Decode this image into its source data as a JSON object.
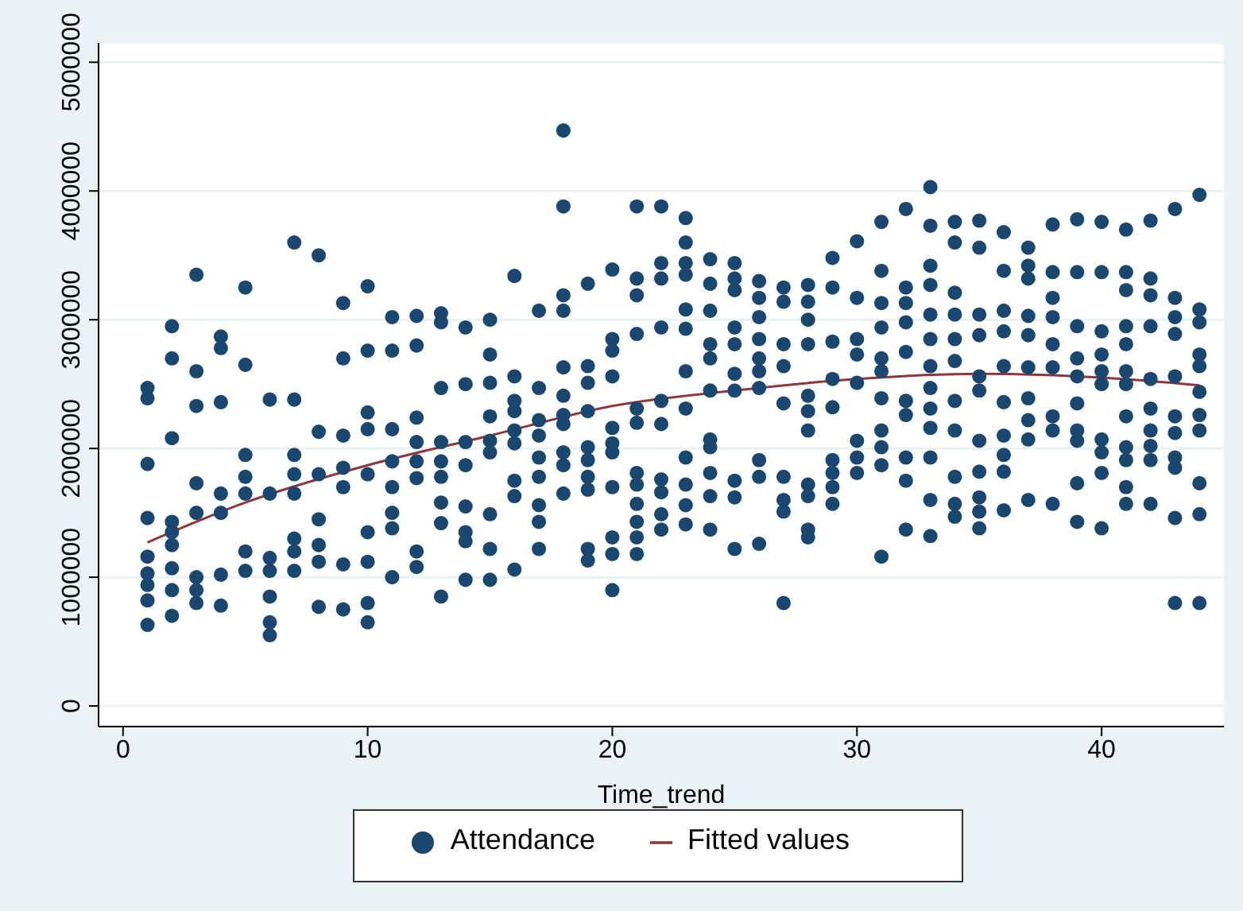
{
  "chart_data": {
    "type": "scatter",
    "xlabel": "Time_trend",
    "xlim": [
      -1,
      45
    ],
    "xticks": [
      0,
      10,
      20,
      30,
      40
    ],
    "ylim": [
      -160000,
      5150000
    ],
    "yticks": [
      0,
      1000000,
      2000000,
      3000000,
      4000000,
      5000000
    ],
    "grid": "y",
    "legend": "bottom",
    "series": [
      {
        "name": "Attendance",
        "marker": "circle",
        "color": "#1a476f",
        "x": [
          1,
          1,
          1,
          1,
          1,
          1,
          1,
          1,
          1,
          2,
          2,
          2,
          2,
          2,
          2,
          2,
          2,
          2,
          3,
          3,
          3,
          3,
          3,
          3,
          3,
          3,
          4,
          4,
          4,
          4,
          4,
          4,
          4,
          5,
          5,
          5,
          5,
          5,
          5,
          5,
          6,
          6,
          6,
          6,
          6,
          6,
          6,
          7,
          7,
          7,
          7,
          7,
          7,
          7,
          7,
          8,
          8,
          8,
          8,
          8,
          8,
          8,
          9,
          9,
          9,
          9,
          9,
          9,
          9,
          10,
          10,
          10,
          10,
          10,
          10,
          10,
          10,
          10,
          11,
          11,
          11,
          11,
          11,
          11,
          11,
          11,
          12,
          12,
          12,
          12,
          12,
          12,
          12,
          12,
          13,
          13,
          13,
          13,
          13,
          13,
          13,
          13,
          13,
          14,
          14,
          14,
          14,
          14,
          14,
          14,
          14,
          15,
          15,
          15,
          15,
          15,
          15,
          15,
          15,
          15,
          16,
          16,
          16,
          16,
          16,
          16,
          16,
          16,
          16,
          17,
          17,
          17,
          17,
          17,
          17,
          17,
          17,
          17,
          18,
          18,
          18,
          18,
          18,
          18,
          18,
          18,
          18,
          18,
          18,
          19,
          19,
          19,
          19,
          19,
          19,
          19,
          19,
          19,
          19,
          20,
          20,
          20,
          20,
          20,
          20,
          20,
          20,
          20,
          20,
          20,
          21,
          21,
          21,
          21,
          21,
          21,
          21,
          21,
          21,
          21,
          21,
          21,
          22,
          22,
          22,
          22,
          22,
          22,
          22,
          22,
          22,
          22,
          23,
          23,
          23,
          23,
          23,
          23,
          23,
          23,
          23,
          23,
          23,
          23,
          24,
          24,
          24,
          24,
          24,
          24,
          24,
          24,
          24,
          24,
          24,
          25,
          25,
          25,
          25,
          25,
          25,
          25,
          25,
          25,
          25,
          26,
          26,
          26,
          26,
          26,
          26,
          26,
          26,
          26,
          26,
          27,
          27,
          27,
          27,
          27,
          27,
          27,
          27,
          27,
          28,
          28,
          28,
          28,
          28,
          28,
          28,
          28,
          28,
          28,
          28,
          29,
          29,
          29,
          29,
          29,
          29,
          29,
          29,
          29,
          30,
          30,
          30,
          30,
          30,
          30,
          30,
          30,
          31,
          31,
          31,
          31,
          31,
          31,
          31,
          31,
          31,
          31,
          31,
          32,
          32,
          32,
          32,
          32,
          32,
          32,
          32,
          32,
          32,
          33,
          33,
          33,
          33,
          33,
          33,
          33,
          33,
          33,
          33,
          33,
          33,
          33,
          34,
          34,
          34,
          34,
          34,
          34,
          34,
          34,
          34,
          34,
          34,
          35,
          35,
          35,
          35,
          35,
          35,
          35,
          35,
          35,
          35,
          35,
          36,
          36,
          36,
          36,
          36,
          36,
          36,
          36,
          36,
          36,
          37,
          37,
          37,
          37,
          37,
          37,
          37,
          37,
          37,
          37,
          38,
          38,
          38,
          38,
          38,
          38,
          38,
          38,
          38,
          39,
          39,
          39,
          39,
          39,
          39,
          39,
          39,
          39,
          39,
          40,
          40,
          40,
          40,
          40,
          40,
          40,
          40,
          40,
          40,
          41,
          41,
          41,
          41,
          41,
          41,
          41,
          41,
          41,
          41,
          41,
          41,
          42,
          42,
          42,
          42,
          42,
          42,
          42,
          42,
          42,
          42,
          43,
          43,
          43,
          43,
          43,
          43,
          43,
          43,
          43,
          43,
          43,
          44,
          44,
          44,
          44,
          44,
          44,
          44,
          44,
          44,
          44,
          44
        ],
        "values": [
          2470000,
          2390000,
          1880000,
          1460000,
          1160000,
          1030000,
          940000,
          820000,
          630000,
          2950000,
          2700000,
          2080000,
          1430000,
          1350000,
          1250000,
          1070000,
          900000,
          700000,
          3350000,
          2600000,
          2330000,
          1730000,
          1500000,
          1000000,
          900000,
          800000,
          2870000,
          2780000,
          2360000,
          1650000,
          1500000,
          1020000,
          780000,
          3250000,
          2650000,
          1950000,
          1780000,
          1650000,
          1200000,
          1050000,
          2380000,
          1650000,
          1150000,
          1050000,
          850000,
          650000,
          550000,
          3600000,
          2380000,
          1950000,
          1800000,
          1650000,
          1300000,
          1200000,
          1050000,
          3500000,
          2130000,
          1800000,
          1450000,
          1250000,
          1120000,
          770000,
          3130000,
          2700000,
          2100000,
          1850000,
          1700000,
          1100000,
          750000,
          3260000,
          2760000,
          2280000,
          2150000,
          1800000,
          1350000,
          1120000,
          800000,
          650000,
          3020000,
          2760000,
          2150000,
          1900000,
          1700000,
          1500000,
          1380000,
          1000000,
          3030000,
          2800000,
          2240000,
          2050000,
          1900000,
          1770000,
          1200000,
          1080000,
          3050000,
          2980000,
          2470000,
          2050000,
          1900000,
          1780000,
          1580000,
          1420000,
          850000,
          2940000,
          2500000,
          2050000,
          1870000,
          1550000,
          1350000,
          1280000,
          980000,
          3000000,
          2730000,
          2510000,
          2250000,
          2060000,
          1970000,
          1490000,
          1220000,
          980000,
          3340000,
          2560000,
          2370000,
          2290000,
          2140000,
          2040000,
          1750000,
          1630000,
          1060000,
          3070000,
          2470000,
          2220000,
          2100000,
          1930000,
          1780000,
          1560000,
          1430000,
          1220000,
          4470000,
          3880000,
          3190000,
          3070000,
          2630000,
          2410000,
          2260000,
          2190000,
          1970000,
          1870000,
          1650000,
          3280000,
          2640000,
          2510000,
          2290000,
          2010000,
          1910000,
          1780000,
          1680000,
          1220000,
          1130000,
          3390000,
          2850000,
          2760000,
          2560000,
          2160000,
          2040000,
          1970000,
          1700000,
          1310000,
          1180000,
          900000,
          3880000,
          3320000,
          3190000,
          2890000,
          2310000,
          2200000,
          1810000,
          1720000,
          1570000,
          1430000,
          1310000,
          1180000,
          3880000,
          3440000,
          3320000,
          2940000,
          2370000,
          2190000,
          1760000,
          1660000,
          1490000,
          1370000,
          3790000,
          3600000,
          3440000,
          3350000,
          3080000,
          2930000,
          2600000,
          2310000,
          1930000,
          1720000,
          1560000,
          1410000,
          3470000,
          3280000,
          3070000,
          2810000,
          2700000,
          2450000,
          2070000,
          2010000,
          1810000,
          1630000,
          1370000,
          3440000,
          3320000,
          3230000,
          2940000,
          2810000,
          2580000,
          2450000,
          1750000,
          1620000,
          1220000,
          3300000,
          3170000,
          3020000,
          2850000,
          2700000,
          2600000,
          2470000,
          1910000,
          1780000,
          1260000,
          3250000,
          3140000,
          2810000,
          2640000,
          2350000,
          1780000,
          1600000,
          1510000,
          800000,
          3270000,
          3140000,
          3000000,
          2810000,
          2410000,
          2290000,
          2140000,
          1720000,
          1630000,
          1370000,
          1310000,
          3480000,
          3250000,
          2830000,
          2540000,
          2320000,
          1910000,
          1810000,
          1700000,
          1570000,
          3610000,
          3170000,
          2850000,
          2730000,
          2510000,
          2060000,
          1930000,
          1810000,
          3760000,
          3380000,
          3130000,
          2940000,
          2700000,
          2600000,
          2390000,
          2140000,
          2010000,
          1870000,
          1160000,
          3860000,
          3250000,
          3130000,
          2980000,
          2750000,
          2370000,
          2260000,
          1930000,
          1750000,
          1370000,
          4030000,
          3730000,
          3420000,
          3270000,
          3040000,
          2850000,
          2640000,
          2470000,
          2310000,
          2160000,
          1930000,
          1600000,
          1320000,
          3760000,
          3600000,
          3210000,
          3040000,
          2850000,
          2680000,
          2370000,
          2140000,
          1780000,
          1570000,
          1470000,
          3770000,
          3560000,
          3040000,
          2880000,
          2560000,
          2450000,
          2060000,
          1820000,
          1620000,
          1510000,
          1380000,
          3680000,
          3380000,
          3070000,
          2910000,
          2640000,
          2360000,
          2100000,
          1950000,
          1820000,
          1520000,
          3560000,
          3420000,
          3320000,
          3030000,
          2880000,
          2630000,
          2390000,
          2220000,
          2070000,
          1600000,
          3740000,
          3370000,
          3170000,
          3020000,
          2810000,
          2630000,
          2250000,
          2140000,
          1570000,
          3780000,
          3370000,
          2950000,
          2700000,
          2560000,
          2350000,
          2140000,
          2060000,
          1730000,
          1430000,
          3760000,
          3370000,
          2910000,
          2730000,
          2600000,
          2500000,
          2070000,
          1970000,
          1810000,
          1380000,
          3700000,
          3370000,
          3230000,
          2950000,
          2810000,
          2600000,
          2500000,
          2250000,
          2010000,
          1910000,
          1700000,
          1570000,
          3770000,
          3320000,
          3190000,
          2950000,
          2540000,
          2310000,
          2140000,
          2020000,
          1910000,
          1570000,
          3860000,
          3170000,
          3020000,
          2890000,
          2560000,
          2250000,
          2120000,
          1930000,
          1850000,
          1460000,
          800000,
          3970000,
          3080000,
          2980000,
          2730000,
          2640000,
          2440000,
          2260000,
          2140000,
          1730000,
          1490000,
          800000
        ]
      },
      {
        "name": "Fitted values",
        "type": "line",
        "marker": "none",
        "color": "#90353b",
        "x": [
          1,
          5,
          10,
          15,
          20,
          25,
          30,
          35,
          40,
          44
        ],
        "values": [
          1270000,
          1580000,
          1870000,
          2100000,
          2330000,
          2450000,
          2540000,
          2580000,
          2550000,
          2490000
        ]
      }
    ]
  }
}
